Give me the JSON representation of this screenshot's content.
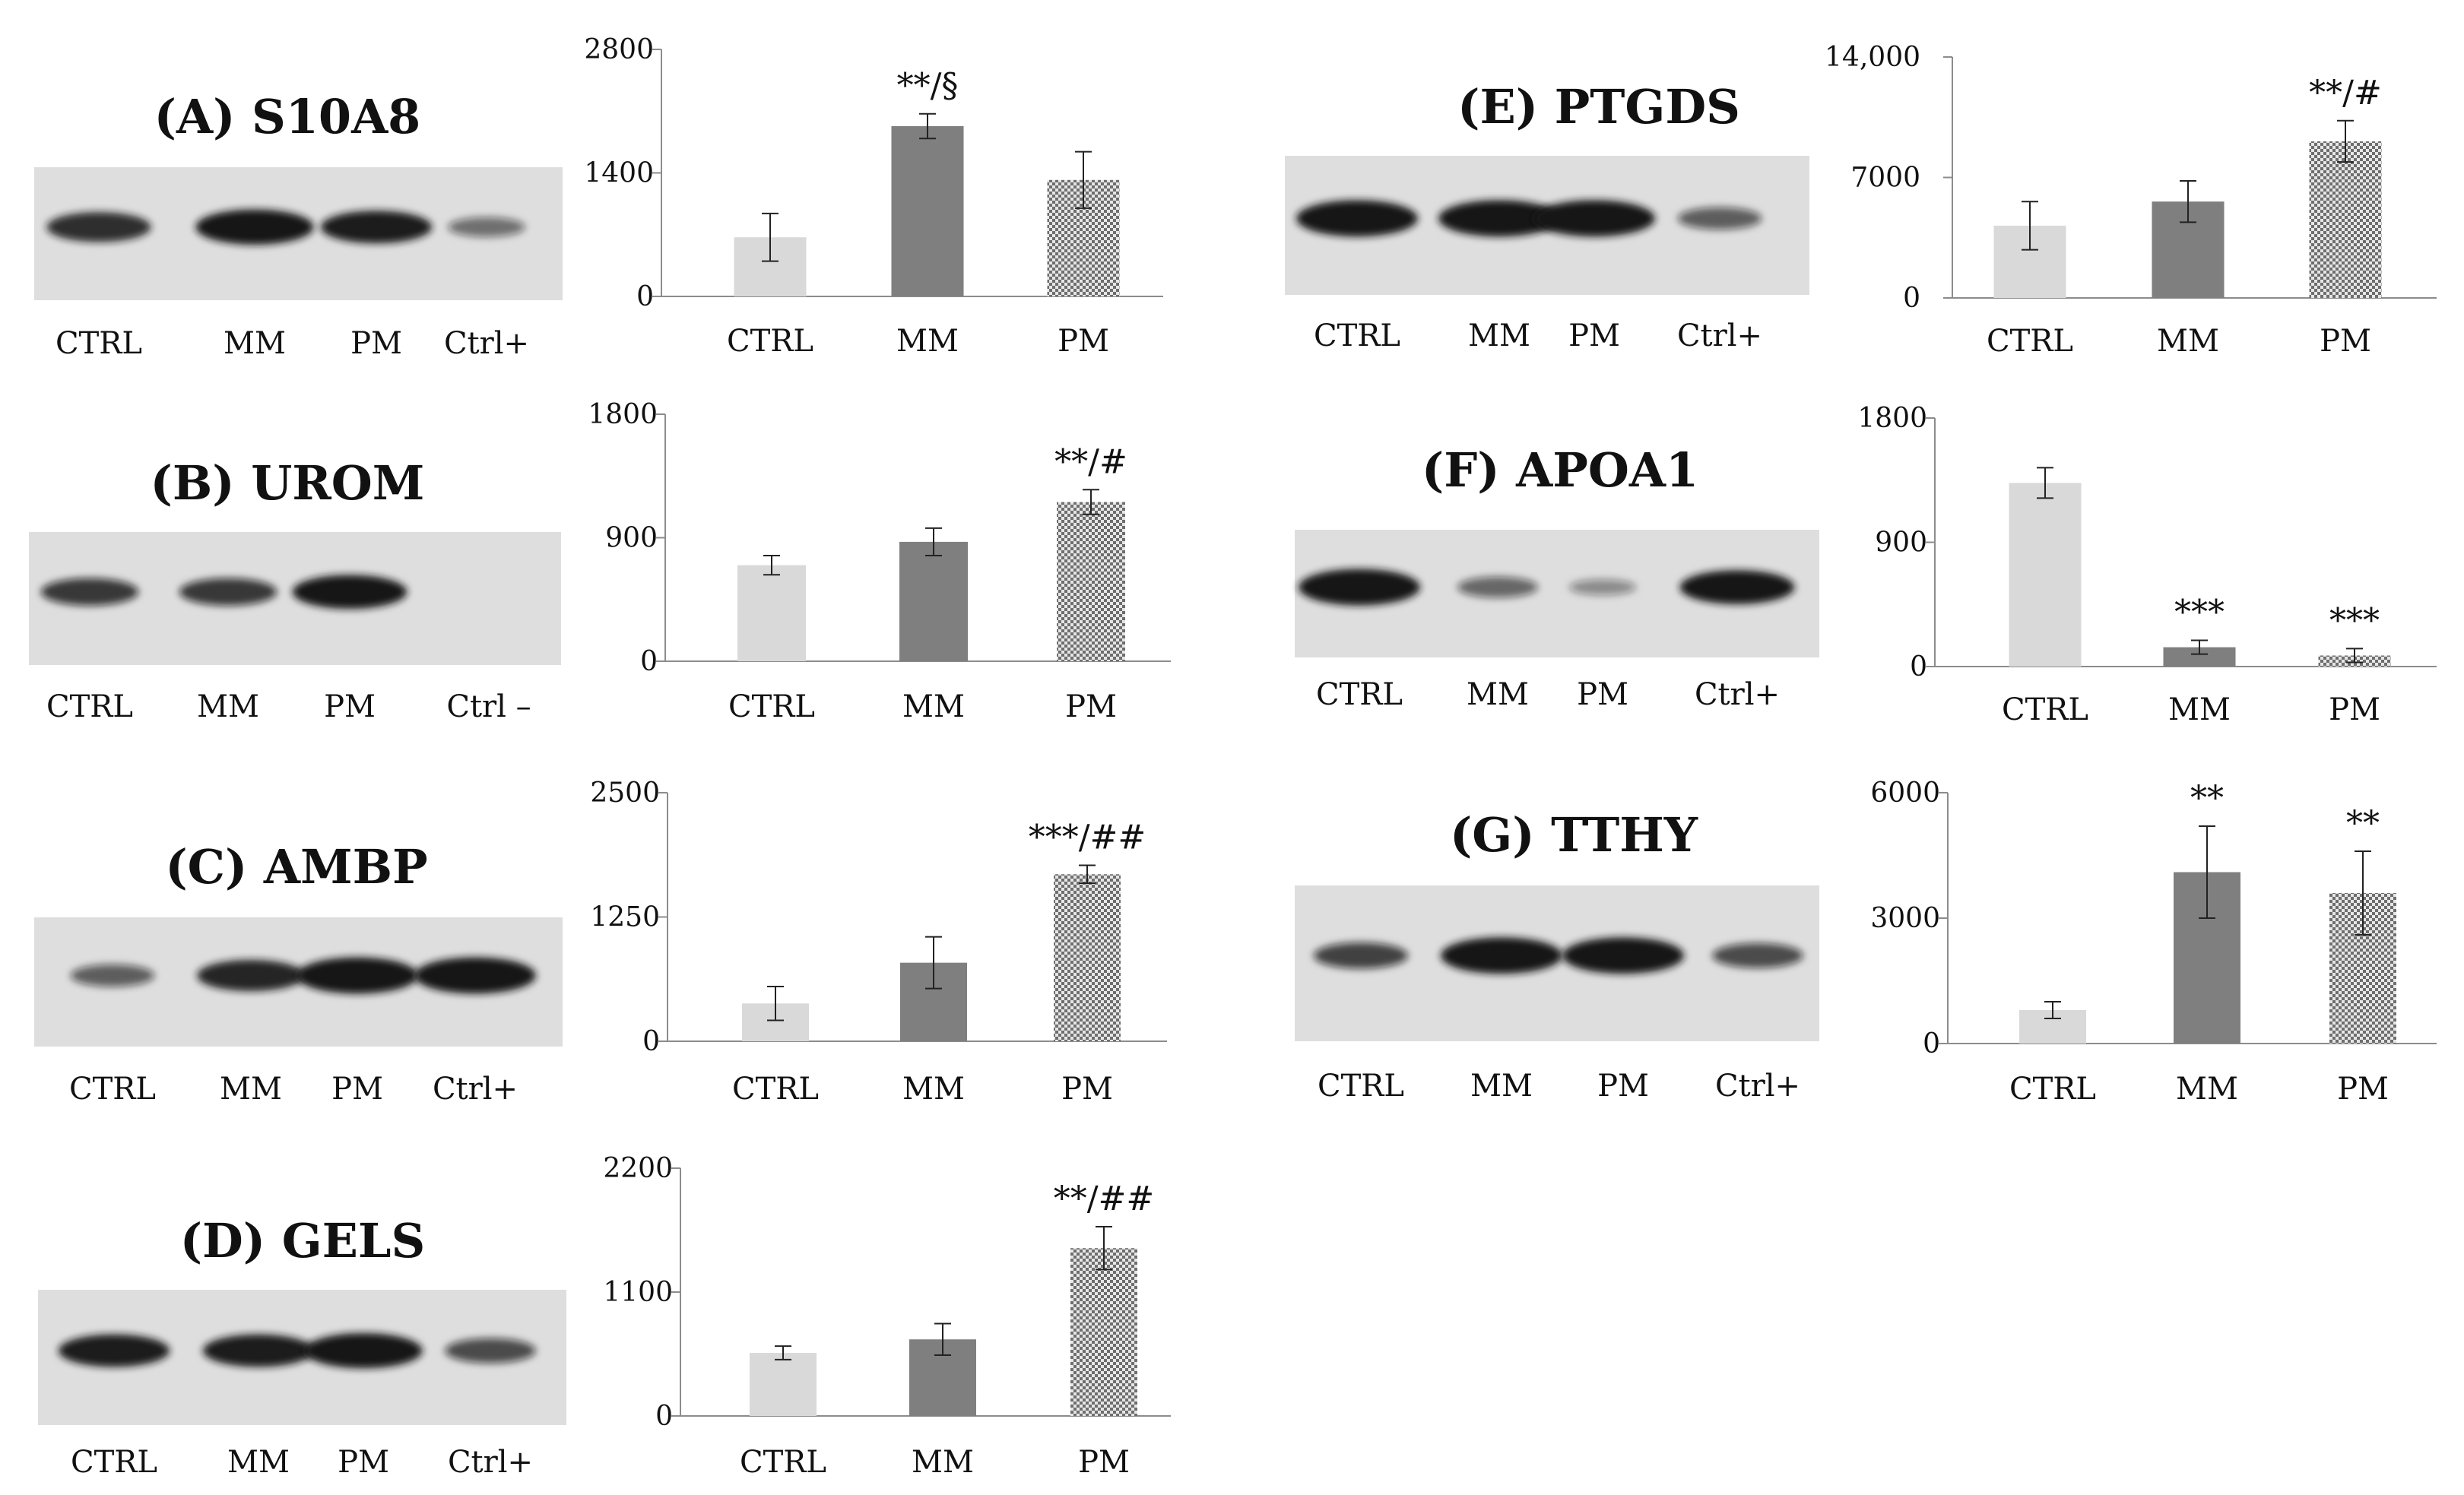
{
  "colors": {
    "ctrl": "#d9d9d9",
    "mm": "#7f7f7f",
    "pm_pattern_fg": "#6e6e6e",
    "pm_pattern_bg": "#e6e6e6",
    "blot_bg": "#dedede",
    "band": "#141414",
    "axis": "#8c8c8c"
  },
  "panels": [
    {
      "id": "A",
      "title": "(A) S10A8",
      "lanes": [
        "CTRL",
        "MM",
        "PM",
        "Ctrl+"
      ],
      "band_intensity": [
        0.75,
        0.95,
        0.85,
        0.35
      ],
      "chart_data": {
        "type": "bar",
        "categories": [
          "CTRL",
          "MM",
          "PM"
        ],
        "values": [
          670,
          1930,
          1320
        ],
        "errors": [
          270,
          140,
          320
        ],
        "ylim": [
          0,
          2800
        ],
        "yticks": [
          "0",
          "1400",
          "2800"
        ],
        "annotations": [
          "",
          "**/§",
          ""
        ]
      }
    },
    {
      "id": "B",
      "title": "(B) UROM",
      "lanes": [
        "CTRL",
        "MM",
        "PM",
        "Ctrl –"
      ],
      "band_intensity": [
        0.65,
        0.65,
        0.9,
        0.0
      ],
      "chart_data": {
        "type": "bar",
        "categories": [
          "CTRL",
          "MM",
          "PM"
        ],
        "values": [
          700,
          870,
          1160
        ],
        "errors": [
          70,
          100,
          90
        ],
        "ylim": [
          0,
          1800
        ],
        "yticks": [
          "0",
          "900",
          "1800"
        ],
        "annotations": [
          "",
          "",
          "**/#"
        ]
      }
    },
    {
      "id": "C",
      "title": "(C) AMBP",
      "lanes": [
        "CTRL",
        "MM",
        "PM",
        "Ctrl+"
      ],
      "band_intensity": [
        0.45,
        0.8,
        1.0,
        1.0
      ],
      "chart_data": {
        "type": "bar",
        "categories": [
          "CTRL",
          "MM",
          "PM"
        ],
        "values": [
          380,
          790,
          1680
        ],
        "errors": [
          170,
          260,
          90
        ],
        "ylim": [
          0,
          2500
        ],
        "yticks": [
          "0",
          "1250",
          "2500"
        ],
        "annotations": [
          "",
          "",
          "***/##"
        ]
      }
    },
    {
      "id": "D",
      "title": "(D) GELS",
      "lanes": [
        "CTRL",
        "MM",
        "PM",
        "Ctrl+"
      ],
      "band_intensity": [
        0.85,
        0.85,
        0.95,
        0.55
      ],
      "chart_data": {
        "type": "bar",
        "categories": [
          "CTRL",
          "MM",
          "PM"
        ],
        "values": [
          560,
          680,
          1490
        ],
        "errors": [
          60,
          140,
          190
        ],
        "ylim": [
          0,
          2200
        ],
        "yticks": [
          "0",
          "1100",
          "2200"
        ],
        "annotations": [
          "",
          "",
          "**/##"
        ]
      }
    },
    {
      "id": "E",
      "title": "(E) PTGDS",
      "lanes": [
        "CTRL",
        "MM",
        "PM",
        "Ctrl+"
      ],
      "band_intensity": [
        1.0,
        1.0,
        1.0,
        0.45
      ],
      "chart_data": {
        "type": "bar",
        "categories": [
          "CTRL",
          "MM",
          "PM"
        ],
        "values": [
          4200,
          5600,
          9100
        ],
        "errors": [
          1400,
          1200,
          1200
        ],
        "ylim": [
          0,
          14000
        ],
        "yticks": [
          "0",
          "7000",
          "14,000"
        ],
        "annotations": [
          "",
          "",
          "**/#"
        ]
      }
    },
    {
      "id": "F",
      "title": "(F) APOA1",
      "lanes": [
        "CTRL",
        "MM",
        "PM",
        "Ctrl+"
      ],
      "band_intensity": [
        1.0,
        0.4,
        0.2,
        0.9
      ],
      "chart_data": {
        "type": "bar",
        "categories": [
          "CTRL",
          "MM",
          "PM"
        ],
        "values": [
          1330,
          140,
          80
        ],
        "errors": [
          110,
          50,
          50
        ],
        "ylim": [
          0,
          1800
        ],
        "yticks": [
          "0",
          "900",
          "1800"
        ],
        "annotations": [
          "",
          "***",
          "***"
        ]
      }
    },
    {
      "id": "G",
      "title": "(G) TTHY",
      "lanes": [
        "CTRL",
        "MM",
        "PM",
        "Ctrl+"
      ],
      "band_intensity": [
        0.6,
        1.0,
        1.0,
        0.55
      ],
      "chart_data": {
        "type": "bar",
        "categories": [
          "CTRL",
          "MM",
          "PM"
        ],
        "values": [
          800,
          4100,
          3600
        ],
        "errors": [
          200,
          1100,
          1000
        ],
        "ylim": [
          0,
          6000
        ],
        "yticks": [
          "0",
          "3000",
          "6000"
        ],
        "annotations": [
          "",
          "**",
          "**"
        ]
      }
    }
  ]
}
